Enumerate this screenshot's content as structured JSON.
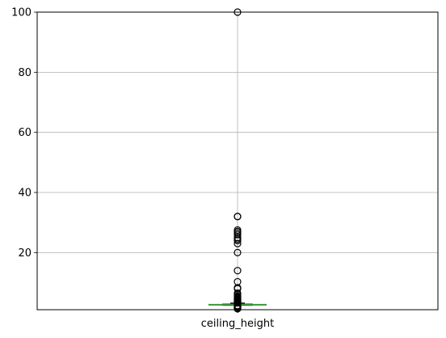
{
  "chart_data": {
    "type": "box",
    "categories": [
      "ceiling_height"
    ],
    "y_ticks": [
      20,
      40,
      60,
      80,
      100
    ],
    "y_tick_labels": [
      "20",
      "40",
      "60",
      "80",
      "100"
    ],
    "ylim": [
      1,
      100
    ],
    "grid": true,
    "box": {
      "whisker_low": 2.5,
      "q1": 2.52,
      "median": 2.65,
      "q3": 2.8,
      "whisker_high": 3.2
    },
    "outliers": [
      100,
      32,
      32,
      27.5,
      27,
      26.5,
      26,
      25,
      24.5,
      24,
      23,
      20,
      14,
      10.3,
      8.3,
      8,
      6.5,
      6,
      5.5,
      5.2,
      5,
      4.8,
      4.6,
      4.5,
      4.4,
      4.2,
      4.1,
      4,
      3.9,
      3.8,
      3.7,
      3.6,
      3.5,
      3.4,
      3.3,
      2.4,
      2.3,
      2.2,
      2.1,
      2,
      1.9,
      1.8,
      1.7,
      1.6,
      1.5,
      1.4,
      1.3
    ],
    "colors": {
      "box": "#000000",
      "median": "#2ca02c",
      "whisker": "#1f77b4",
      "grid": "#b0b0b0",
      "flier": "#000000"
    }
  }
}
